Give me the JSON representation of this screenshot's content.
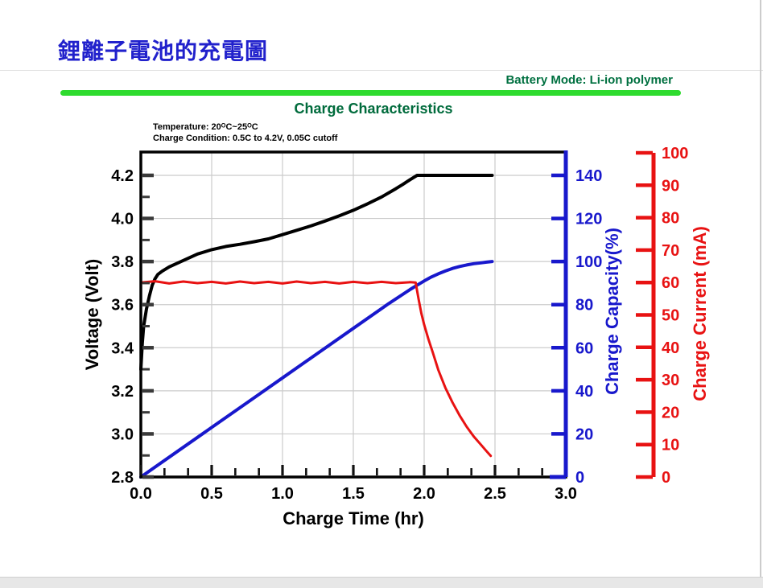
{
  "header": {
    "title": "鋰離子電池的充電圖",
    "battery_mode": "Battery Mode: Li-ion polymer",
    "chart_title": "Charge Characteristics",
    "annotations": [
      "Temperature: 20ᴼC~25ᴼC",
      "Charge Condition: 0.5C to 4.2V, 0.05C cutoff"
    ]
  },
  "colors": {
    "title_blue": "#2121CC",
    "green_rule": "#2EDB2E",
    "dark_green": "#006B3C",
    "battery_mode_green": "#007040",
    "voltage_black": "#000000",
    "capacity_blue": "#1818CC",
    "current_red": "#E81212",
    "grid_gray": "#CBCBCB",
    "footer_gray": "#E7E7E7"
  },
  "chart_data": {
    "type": "line",
    "title": "Charge Characteristics",
    "grid": true,
    "x_axis": {
      "label": "Charge Time (hr)",
      "range": [
        0,
        3.0
      ],
      "major_ticks": [
        0.0,
        0.5,
        1.0,
        1.5,
        2.0,
        2.5,
        3.0
      ],
      "minor_step": 0.16667,
      "tick_format": "fixed1"
    },
    "y_axes": {
      "voltage": {
        "label": "Voltage (Volt)",
        "color": "#000000",
        "tick_range": [
          2.8,
          4.2
        ],
        "major_ticks": [
          4.2,
          4.0,
          3.8,
          3.6,
          3.4,
          3.2,
          3.0,
          2.8
        ],
        "minor_step": 0.1,
        "tick_format": "fixed1",
        "side": "left"
      },
      "capacity": {
        "label": "Charge Capacity(%)",
        "color": "#1818CC",
        "tick_range": [
          0,
          140
        ],
        "major_ticks": [
          140,
          120,
          100,
          80,
          60,
          40,
          20,
          0
        ],
        "tick_format": "int",
        "side": "right-inner"
      },
      "current": {
        "label": "Charge Current (mA)",
        "color": "#E81212",
        "tick_range": [
          0,
          100
        ],
        "major_ticks": [
          100,
          90,
          80,
          70,
          60,
          50,
          40,
          30,
          20,
          10,
          0
        ],
        "tick_format": "int",
        "side": "right-outer"
      }
    },
    "series": [
      {
        "name": "voltage",
        "axis": "voltage",
        "color": "#000000",
        "width": 4,
        "points": [
          [
            0,
            3.3
          ],
          [
            0.01,
            3.42
          ],
          [
            0.02,
            3.5
          ],
          [
            0.04,
            3.58
          ],
          [
            0.06,
            3.64
          ],
          [
            0.08,
            3.69
          ],
          [
            0.1,
            3.72
          ],
          [
            0.12,
            3.74
          ],
          [
            0.15,
            3.755
          ],
          [
            0.2,
            3.775
          ],
          [
            0.25,
            3.79
          ],
          [
            0.3,
            3.805
          ],
          [
            0.35,
            3.82
          ],
          [
            0.4,
            3.835
          ],
          [
            0.45,
            3.845
          ],
          [
            0.5,
            3.855
          ],
          [
            0.6,
            3.87
          ],
          [
            0.7,
            3.88
          ],
          [
            0.8,
            3.892
          ],
          [
            0.9,
            3.905
          ],
          [
            1.0,
            3.925
          ],
          [
            1.1,
            3.945
          ],
          [
            1.2,
            3.965
          ],
          [
            1.3,
            3.988
          ],
          [
            1.4,
            4.012
          ],
          [
            1.5,
            4.038
          ],
          [
            1.6,
            4.068
          ],
          [
            1.7,
            4.1
          ],
          [
            1.8,
            4.138
          ],
          [
            1.85,
            4.158
          ],
          [
            1.9,
            4.18
          ],
          [
            1.95,
            4.2
          ],
          [
            2.1,
            4.2
          ],
          [
            2.3,
            4.2
          ],
          [
            2.48,
            4.2
          ]
        ]
      },
      {
        "name": "capacity",
        "axis": "capacity",
        "color": "#1818CC",
        "width": 4,
        "points": [
          [
            0,
            0
          ],
          [
            0.25,
            11.5
          ],
          [
            0.5,
            23
          ],
          [
            0.75,
            34.5
          ],
          [
            1.0,
            46
          ],
          [
            1.25,
            57.5
          ],
          [
            1.5,
            69
          ],
          [
            1.75,
            80.5
          ],
          [
            1.9,
            87
          ],
          [
            1.95,
            89
          ],
          [
            2.0,
            91
          ],
          [
            2.05,
            92.8
          ],
          [
            2.1,
            94.3
          ],
          [
            2.15,
            95.6
          ],
          [
            2.2,
            96.8
          ],
          [
            2.25,
            97.7
          ],
          [
            2.3,
            98.4
          ],
          [
            2.35,
            99
          ],
          [
            2.4,
            99.4
          ],
          [
            2.44,
            99.7
          ],
          [
            2.48,
            100
          ]
        ]
      },
      {
        "name": "current",
        "axis": "current",
        "color": "#E81212",
        "width": 3,
        "points": [
          [
            0,
            60
          ],
          [
            0.1,
            60.4
          ],
          [
            0.2,
            59.7
          ],
          [
            0.3,
            60.3
          ],
          [
            0.4,
            59.8
          ],
          [
            0.5,
            60.2
          ],
          [
            0.6,
            59.7
          ],
          [
            0.7,
            60.3
          ],
          [
            0.8,
            59.8
          ],
          [
            0.9,
            60.2
          ],
          [
            1.0,
            59.7
          ],
          [
            1.1,
            60.3
          ],
          [
            1.2,
            59.8
          ],
          [
            1.3,
            60.2
          ],
          [
            1.4,
            59.7
          ],
          [
            1.5,
            60.2
          ],
          [
            1.6,
            59.8
          ],
          [
            1.7,
            60.2
          ],
          [
            1.8,
            59.8
          ],
          [
            1.9,
            60.1
          ],
          [
            1.94,
            60
          ],
          [
            1.96,
            55
          ],
          [
            1.98,
            50.5
          ],
          [
            2.0,
            47
          ],
          [
            2.03,
            42.5
          ],
          [
            2.06,
            38.5
          ],
          [
            2.1,
            33
          ],
          [
            2.15,
            27.5
          ],
          [
            2.2,
            23
          ],
          [
            2.25,
            19
          ],
          [
            2.3,
            15.5
          ],
          [
            2.35,
            12.5
          ],
          [
            2.4,
            10
          ],
          [
            2.44,
            8
          ],
          [
            2.47,
            6.5
          ]
        ]
      }
    ]
  }
}
